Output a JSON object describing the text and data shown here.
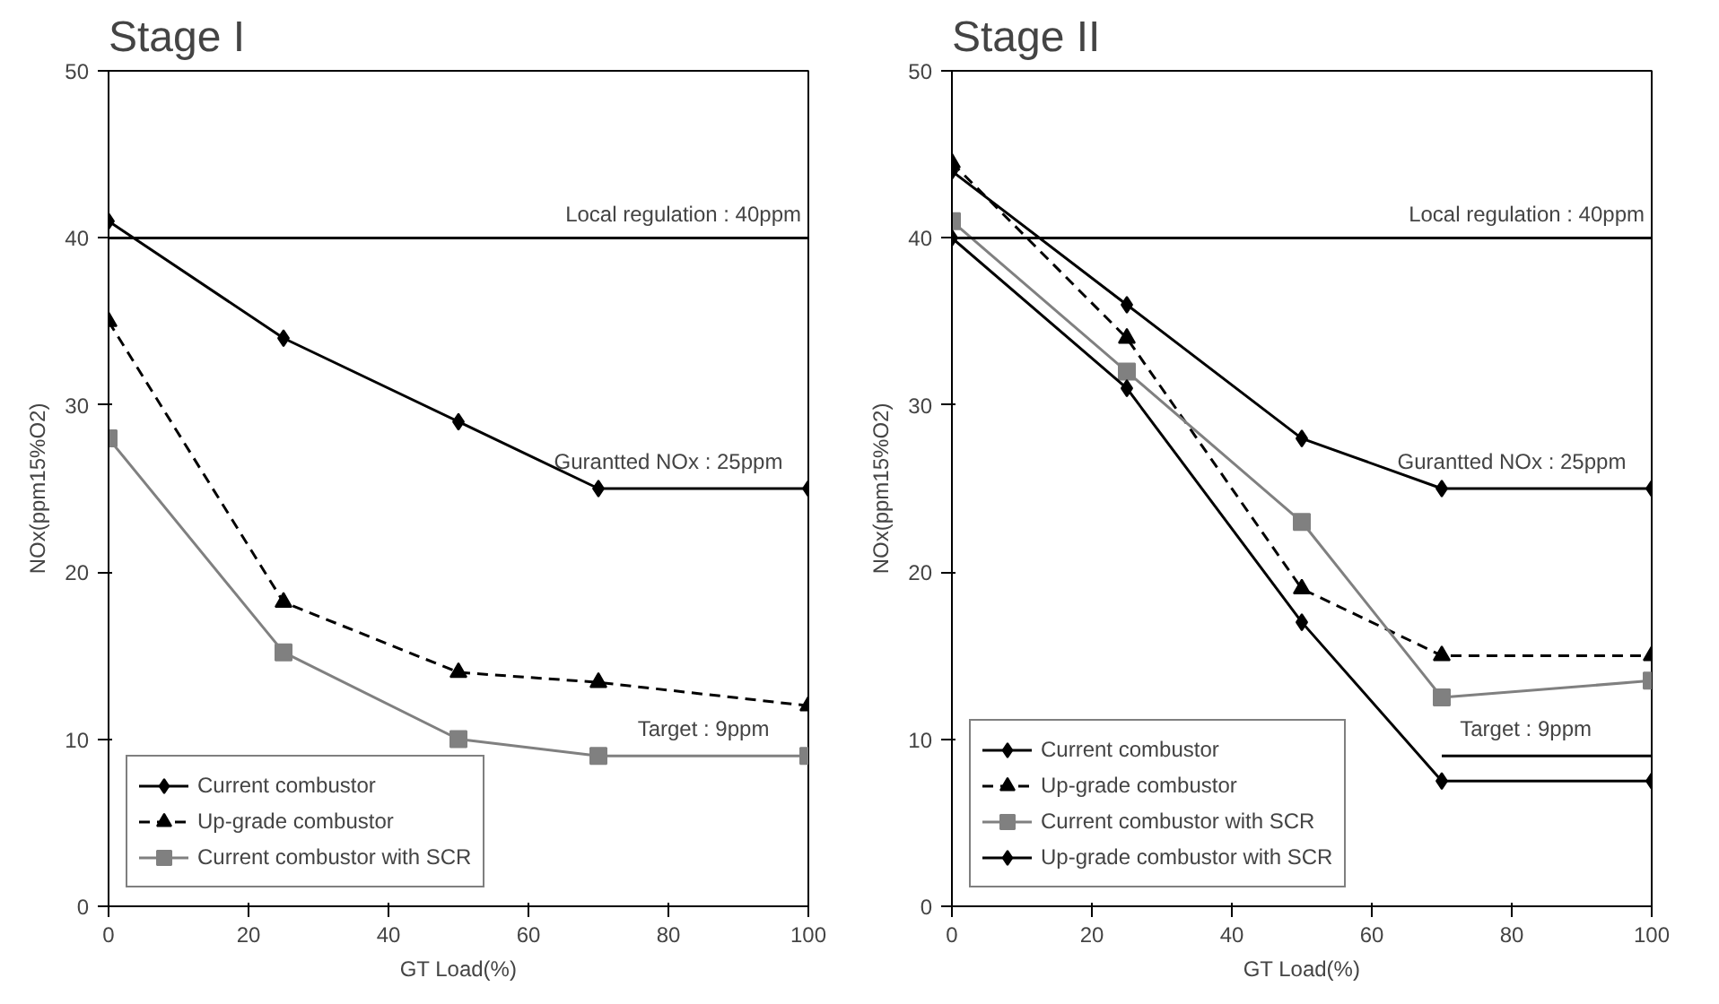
{
  "chart_data": [
    {
      "type": "line",
      "title": "Stage I",
      "xlabel": "GT Load(%)",
      "ylabel": "NOx(ppm15%O2)",
      "x": [
        0,
        25,
        50,
        70,
        100
      ],
      "xlim": [
        0,
        100
      ],
      "xticks": [
        0,
        20,
        40,
        60,
        80,
        100
      ],
      "ylim": [
        0,
        50
      ],
      "yticks": [
        0,
        10,
        20,
        30,
        40,
        50
      ],
      "grid": false,
      "legend": "bottom left",
      "series": [
        {
          "name": "Current combustor",
          "color": "#000000",
          "values": [
            41,
            34,
            29,
            25,
            25
          ],
          "marker": "diamond",
          "line_style": "solid"
        },
        {
          "name": "Up-grade combustor",
          "color": "#000000",
          "values": [
            35,
            18.2,
            14,
            13.4,
            12
          ],
          "marker": "triangle",
          "line_style": "dashed"
        },
        {
          "name": "Current combustor with SCR",
          "color": "#808080",
          "values": [
            28,
            15.2,
            10,
            9,
            9
          ],
          "marker": "square",
          "line_style": "solid"
        }
      ],
      "ref_lines": [
        {
          "axis": "y",
          "value": 40,
          "label": "Local regulation : 40ppm",
          "color": "#000000"
        }
      ],
      "annotations": [
        {
          "text": "Gurantted NOx : 25ppm",
          "x": 80,
          "y": 25
        },
        {
          "text": "Target : 9ppm",
          "x": 85,
          "y": 9
        }
      ]
    },
    {
      "type": "line",
      "title": "Stage II",
      "xlabel": "GT Load(%)",
      "ylabel": "NOx(ppm15%O2)",
      "x": [
        0,
        25,
        50,
        70,
        100
      ],
      "xlim": [
        0,
        100
      ],
      "xticks": [
        0,
        20,
        40,
        60,
        80,
        100
      ],
      "ylim": [
        0,
        50
      ],
      "yticks": [
        0,
        10,
        20,
        30,
        40,
        50
      ],
      "grid": false,
      "legend": "bottom left",
      "series": [
        {
          "name": "Current combustor",
          "color": "#000000",
          "values": [
            44,
            36,
            28,
            25,
            25
          ],
          "marker": "diamond",
          "line_style": "solid"
        },
        {
          "name": "Up-grade combustor",
          "color": "#000000",
          "values": [
            44.5,
            34,
            19,
            15,
            15
          ],
          "marker": "triangle",
          "line_style": "dashed"
        },
        {
          "name": "Current combustor with SCR",
          "color": "#808080",
          "values": [
            41,
            32,
            23,
            12.5,
            13.5
          ],
          "marker": "square",
          "line_style": "solid"
        },
        {
          "name": "Up-grade combustor with SCR",
          "color": "#000000",
          "values": [
            40,
            31,
            17,
            7.5,
            7.5
          ],
          "marker": "diamond",
          "line_style": "solid"
        },
        {
          "color": "#000000",
          "x": [
            70,
            100
          ],
          "values": [
            9,
            9
          ],
          "marker": "none",
          "line_style": "solid"
        }
      ],
      "ref_lines": [
        {
          "axis": "y",
          "value": 40,
          "label": "Local regulation : 40ppm",
          "color": "#000000"
        }
      ],
      "annotations": [
        {
          "text": "Gurantted NOx : 25ppm",
          "x": 80,
          "y": 25
        },
        {
          "text": "Target : 9ppm",
          "x": 82,
          "y": 9
        }
      ]
    }
  ]
}
